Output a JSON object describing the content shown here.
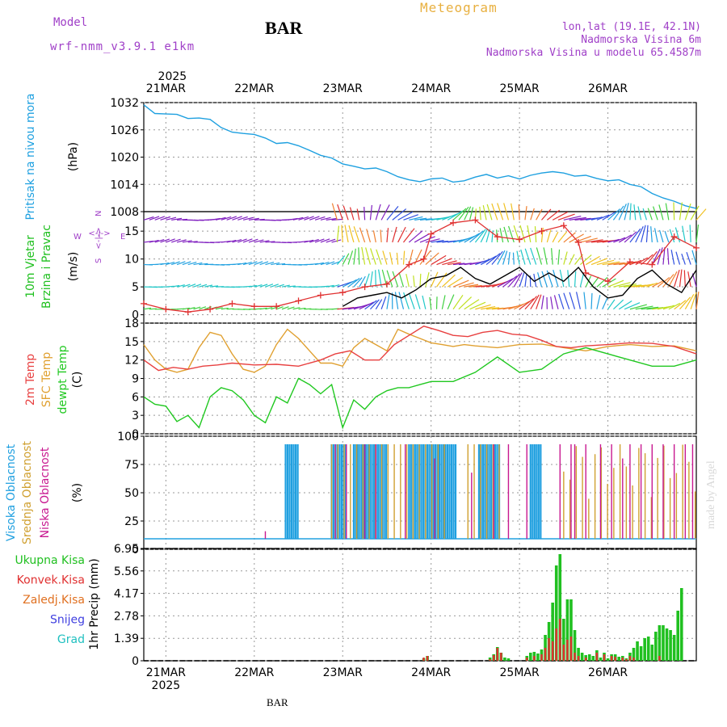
{
  "header": {
    "model_label": "Model",
    "model_name": "wrf-nmm_v3.9.1 e1km",
    "station": "BAR",
    "product": "Meteogram",
    "location": "lon,lat (19.1E, 42.1N)",
    "altitude": "Nadmorska Visina 6m",
    "model_altitude": "Nadmorska Visina u modelu 65.4587m",
    "footer_station": "BAR",
    "credit": "made by Angel"
  },
  "colors": {
    "pressure": "#1ea0e0",
    "wind_speed": "#000000",
    "wind_gust": "#e03030",
    "temp_2m": "#e84040",
    "temp_sfc": "#e0a030",
    "dewpoint": "#20c820",
    "cloud_high": "#20a0e0",
    "cloud_mid": "#d0a030",
    "cloud_low": "#c81890",
    "precip_total": "#20c020",
    "precip_conv": "#e03030",
    "precip_frozen": "#e07020",
    "snow": "#4040e0",
    "hail": "#20c0c0",
    "purple_text": "#a040c8"
  },
  "chart_data": [
    {
      "type": "line",
      "id": "pressure",
      "ylabel": "Pritisak na nivou mora",
      "unit": "(hPa)",
      "ylim": [
        1008,
        1032
      ],
      "yticks": [
        1008,
        1014,
        1020,
        1026,
        1032
      ],
      "x_top_year": "2025",
      "x_top_labels": [
        "21MAR",
        "22MAR",
        "23MAR",
        "24MAR",
        "25MAR",
        "26MAR"
      ],
      "series": [
        {
          "x": [
            0,
            3,
            6,
            9,
            12,
            15,
            18,
            21,
            24,
            27,
            30,
            33,
            36,
            39,
            42,
            45,
            48,
            51,
            54,
            57,
            60,
            63,
            66,
            69,
            72,
            75,
            78,
            81,
            84,
            87,
            90,
            93,
            96,
            99,
            102,
            105,
            108,
            111,
            114,
            117,
            120,
            123,
            126,
            129,
            132,
            135,
            138,
            141,
            144,
            147,
            150
          ],
          "values": [
            1031.5,
            1029.6,
            1029.5,
            1029.4,
            1028.5,
            1028.6,
            1028.3,
            1026.5,
            1025.5,
            1025.2,
            1025.0,
            1024.2,
            1023.0,
            1023.2,
            1022.5,
            1021.5,
            1020.4,
            1019.8,
            1018.5,
            1018.0,
            1017.4,
            1017.6,
            1016.8,
            1015.7,
            1015.0,
            1014.6,
            1015.2,
            1015.4,
            1014.5,
            1014.8,
            1015.6,
            1016.2,
            1015.4,
            1015.9,
            1015.2,
            1016.0,
            1016.5,
            1016.8,
            1016.5,
            1015.8,
            1016.0,
            1015.3,
            1014.8,
            1015.0,
            1014.0,
            1013.5,
            1012.0,
            1011.0,
            1010.3,
            1009.3,
            1008.7
          ]
        }
      ]
    },
    {
      "type": "line",
      "id": "wind",
      "ylabel": "10m Vjetar Brzina i Pravac",
      "unit": "(m/s)",
      "ylim": [
        -1.5,
        18.5
      ],
      "yticks": [
        0,
        5,
        10,
        15
      ],
      "compass": {
        "n": "N",
        "s": "S",
        "e": "E",
        "w": "W",
        "arrows": "<-|->"
      },
      "series": [
        {
          "name": "speed",
          "x": [
            54,
            58,
            62,
            66,
            70,
            74,
            78,
            82,
            86,
            90,
            94,
            98,
            102,
            106,
            110,
            114,
            118,
            122,
            126,
            130,
            134,
            138,
            142,
            146,
            150
          ],
          "values": [
            1.5,
            3.0,
            3.5,
            4.0,
            3.0,
            4.5,
            6.5,
            7.0,
            8.5,
            6.5,
            5.5,
            7.0,
            8.5,
            6.0,
            7.5,
            6.0,
            8.5,
            5.0,
            3.0,
            3.5,
            6.5,
            8.0,
            5.5,
            4.0,
            8.0
          ]
        },
        {
          "name": "gust",
          "x": [
            0,
            6,
            12,
            18,
            24,
            30,
            36,
            42,
            48,
            54,
            60,
            66,
            72,
            76,
            78,
            84,
            90,
            96,
            102,
            108,
            114,
            118,
            120,
            126,
            132,
            138,
            144,
            150
          ],
          "values": [
            2.0,
            1.0,
            0.5,
            1.0,
            2.0,
            1.5,
            1.5,
            2.5,
            3.5,
            4.0,
            5.0,
            5.5,
            9.0,
            10.0,
            14.5,
            16.5,
            17.0,
            14.0,
            13.5,
            15.0,
            16.0,
            13.0,
            7.5,
            6.0,
            9.5,
            9.0,
            14.0,
            12.0
          ]
        }
      ]
    },
    {
      "type": "line",
      "id": "temperature",
      "ylabel": "2m Temp SFC Temp dewpt Temp",
      "unit": "(C)",
      "ylim": [
        0,
        18
      ],
      "yticks": [
        0,
        3,
        6,
        9,
        12,
        15,
        18
      ],
      "series": [
        {
          "name": "2m Temp",
          "x": [
            0,
            4,
            8,
            12,
            16,
            20,
            24,
            30,
            36,
            42,
            48,
            52,
            56,
            60,
            64,
            68,
            72,
            76,
            80,
            84,
            88,
            92,
            96,
            100,
            104,
            108,
            112,
            116,
            120,
            126,
            132,
            138,
            144,
            150
          ],
          "values": [
            12.0,
            10.3,
            10.8,
            10.5,
            11.0,
            11.2,
            11.5,
            11.2,
            11.3,
            11.0,
            12.0,
            13.0,
            13.5,
            12.0,
            12.0,
            14.5,
            16.0,
            17.5,
            16.8,
            16.0,
            15.8,
            16.5,
            16.8,
            16.2,
            16.0,
            15.2,
            14.2,
            14.0,
            14.3,
            14.5,
            14.8,
            14.7,
            14.2,
            13.0
          ]
        },
        {
          "name": "SFC Temp",
          "x": [
            0,
            3,
            6,
            9,
            12,
            15,
            18,
            21,
            24,
            27,
            30,
            33,
            36,
            39,
            42,
            45,
            48,
            51,
            54,
            57,
            60,
            63,
            66,
            69,
            72,
            75,
            78,
            81,
            84,
            87,
            90,
            96,
            102,
            108,
            114,
            120,
            126,
            132,
            138,
            144,
            150
          ],
          "values": [
            14.5,
            12.0,
            10.5,
            10.0,
            10.5,
            14.0,
            16.5,
            16.0,
            13.0,
            10.5,
            10.0,
            11.0,
            14.5,
            17.0,
            15.5,
            13.5,
            11.5,
            11.5,
            11.0,
            14.0,
            15.5,
            14.5,
            13.5,
            17.0,
            16.2,
            15.5,
            14.8,
            14.5,
            14.2,
            14.5,
            14.3,
            14.0,
            14.5,
            14.6,
            14.0,
            13.5,
            14.2,
            14.5,
            14.2,
            14.3,
            13.5
          ]
        },
        {
          "name": "dewpt Temp",
          "x": [
            0,
            3,
            6,
            9,
            12,
            15,
            18,
            21,
            24,
            27,
            30,
            33,
            36,
            39,
            42,
            45,
            48,
            51,
            54,
            57,
            60,
            63,
            66,
            69,
            72,
            75,
            78,
            84,
            90,
            96,
            102,
            108,
            114,
            120,
            126,
            132,
            138,
            144,
            150
          ],
          "values": [
            6.0,
            4.8,
            4.5,
            2.0,
            3.0,
            1.0,
            6.0,
            7.5,
            7.0,
            5.5,
            3.0,
            1.8,
            6.0,
            5.0,
            9.0,
            8.0,
            6.5,
            8.0,
            1.0,
            5.5,
            4.0,
            6.0,
            7.0,
            7.5,
            7.5,
            8.0,
            8.5,
            8.5,
            10.0,
            12.5,
            10.0,
            10.5,
            13.0,
            14.0,
            13.0,
            12.0,
            11.0,
            11.0,
            12.0
          ]
        }
      ]
    },
    {
      "type": "bar",
      "id": "clouds",
      "ylabel_high": "Visoka Oblacnost",
      "ylabel_mid": "Srednja Oblacnost",
      "ylabel_low": "Niska Oblacnost",
      "unit": "(%)",
      "ylim": [
        0,
        100
      ],
      "yticks": [
        0,
        25,
        50,
        75,
        100
      ],
      "high_ranges": [
        [
          38.5,
          42
        ],
        [
          51,
          55
        ],
        [
          57,
          66
        ],
        [
          72,
          85
        ],
        [
          91,
          97
        ],
        [
          105,
          108
        ]
      ],
      "mid_ranges": [
        [
          51,
          82
        ],
        [
          88,
          98
        ],
        [
          114,
          150
        ]
      ],
      "low_hours": [
        33,
        52,
        55,
        60,
        63,
        71,
        79,
        89,
        95,
        99,
        104,
        113,
        116,
        117,
        120,
        124,
        127,
        130,
        132,
        135,
        138,
        141,
        144,
        147,
        149
      ],
      "low_values": [
        8,
        100,
        100,
        100,
        100,
        100,
        85,
        70,
        100,
        100,
        100,
        100,
        100,
        100,
        100,
        100,
        100,
        85,
        100,
        100,
        100,
        100,
        100,
        100,
        100
      ]
    },
    {
      "type": "bar",
      "id": "precip",
      "ylabels": [
        "Ukupna Kisa",
        "Konvek.Kisa",
        "Zaledj.Kisa",
        "Snijeg",
        "Grad"
      ],
      "unit": "1hr Precip (mm)",
      "ylim": [
        0,
        6.95
      ],
      "yticks": [
        0,
        1.39,
        2.78,
        4.17,
        5.56,
        6.95
      ],
      "x_bottom_labels": [
        "21MAR",
        "22MAR",
        "23MAR",
        "24MAR",
        "25MAR",
        "26MAR"
      ],
      "x_bottom_year": "2025",
      "total_hours": [
        76,
        77,
        94,
        95,
        96,
        97,
        98,
        99,
        104,
        105,
        106,
        107,
        108,
        109,
        110,
        111,
        112,
        113,
        114,
        115,
        116,
        117,
        118,
        119,
        120,
        121,
        122,
        123,
        124,
        125,
        126,
        127,
        128,
        129,
        130,
        131,
        132,
        133,
        134,
        135,
        136,
        137,
        138,
        139,
        140,
        141,
        142,
        143,
        144,
        145,
        146,
        147,
        148,
        149,
        150
      ],
      "total_values": [
        0.15,
        0.3,
        0.2,
        0.4,
        0.85,
        0.5,
        0.2,
        0.15,
        0.3,
        0.5,
        0.55,
        0.45,
        0.7,
        1.6,
        2.4,
        3.6,
        5.9,
        6.6,
        2.6,
        3.8,
        3.8,
        1.9,
        0.8,
        0.5,
        0.35,
        0.4,
        0.3,
        0.65,
        0.2,
        0.5,
        0.15,
        0.4,
        0.4,
        0.25,
        0.3,
        0.15,
        0.5,
        0.8,
        1.2,
        0.9,
        1.4,
        1.5,
        1.0,
        1.8,
        2.2,
        2.2,
        2.0,
        1.9,
        1.6,
        3.1,
        4.5,
        0,
        0,
        0,
        0
      ],
      "conv_hours": [
        76,
        77,
        94,
        95,
        96,
        97,
        104,
        106,
        108,
        109,
        110,
        111,
        112,
        113,
        114,
        115,
        116,
        117,
        118,
        120,
        123,
        125,
        127,
        128,
        130,
        131,
        132,
        133,
        140
      ],
      "conv_values": [
        0.2,
        0.3,
        0.1,
        0.35,
        0.8,
        0.5,
        0.2,
        0.3,
        0.4,
        0.8,
        1.4,
        1.2,
        2.0,
        2.6,
        1.0,
        1.3,
        1.5,
        0.5,
        0.3,
        0.2,
        0.5,
        0.4,
        0.3,
        0.25,
        0.2,
        0.1,
        0.3,
        0.2,
        0.3
      ]
    }
  ],
  "x_axis": {
    "start_hour": 0,
    "end_hour": 150,
    "day_start_hours": [
      6,
      30,
      54,
      78,
      102,
      126
    ]
  }
}
